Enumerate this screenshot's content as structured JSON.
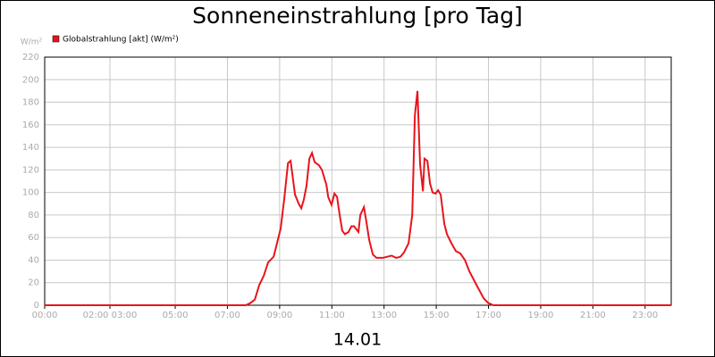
{
  "chart_data": {
    "type": "line",
    "title": "Sonneneinstrahlung [pro Tag]",
    "y_axis_label": "W/m²",
    "x_axis_label": "14.01",
    "x": [
      0,
      7.7,
      7.88,
      8.05,
      8.22,
      8.39,
      8.56,
      8.77,
      8.9,
      9.04,
      9.18,
      9.32,
      9.42,
      9.59,
      9.73,
      9.83,
      9.93,
      10.03,
      10.14,
      10.24,
      10.34,
      10.51,
      10.62,
      10.79,
      10.86,
      10.99,
      11.1,
      11.2,
      11.3,
      11.4,
      11.5,
      11.64,
      11.75,
      11.85,
      11.95,
      12.02,
      12.09,
      12.23,
      12.33,
      12.43,
      12.57,
      12.71,
      12.95,
      13.12,
      13.29,
      13.46,
      13.63,
      13.77,
      13.94,
      14.08,
      14.18,
      14.28,
      14.38,
      14.49,
      14.55,
      14.66,
      14.76,
      14.86,
      14.97,
      15.07,
      15.17,
      15.31,
      15.41,
      15.58,
      15.75,
      15.92,
      16.1,
      16.27,
      16.54,
      16.82,
      16.99,
      17.19,
      24
    ],
    "series": [
      {
        "name": "Globalstrahlung [akt] (W/m²)",
        "color": "#e8141b",
        "values": [
          0,
          0,
          2,
          5,
          18,
          26,
          38,
          43,
          55,
          68,
          95,
          126,
          128,
          98,
          90,
          86,
          94,
          106,
          130,
          135,
          127,
          124,
          120,
          107,
          96,
          89,
          99,
          96,
          80,
          66,
          63,
          65,
          70,
          70,
          67,
          65,
          80,
          87,
          73,
          58,
          45,
          42,
          42,
          43,
          44,
          42,
          43,
          47,
          55,
          80,
          168,
          190,
          125,
          101,
          130,
          128,
          108,
          100,
          99,
          102,
          98,
          72,
          63,
          55,
          48,
          46,
          40,
          30,
          18,
          6,
          2,
          0,
          0
        ]
      }
    ],
    "xlim": [
      0,
      24
    ],
    "xticks": [
      {
        "value": 0,
        "label": "00:00"
      },
      {
        "value": 2.5,
        "label": "02:00 03:00"
      },
      {
        "value": 5,
        "label": "05:00"
      },
      {
        "value": 7,
        "label": "07:00"
      },
      {
        "value": 9,
        "label": "09:00"
      },
      {
        "value": 11,
        "label": "11:00"
      },
      {
        "value": 13,
        "label": "13:00"
      },
      {
        "value": 15,
        "label": "15:00"
      },
      {
        "value": 17,
        "label": "17:00"
      },
      {
        "value": 19,
        "label": "19:00"
      },
      {
        "value": 21,
        "label": "21:00"
      },
      {
        "value": 23,
        "label": "23:00"
      }
    ],
    "ylim": [
      0,
      220
    ],
    "yticks": [
      0,
      20,
      40,
      60,
      80,
      100,
      120,
      140,
      160,
      180,
      200,
      220
    ],
    "grid": true
  }
}
